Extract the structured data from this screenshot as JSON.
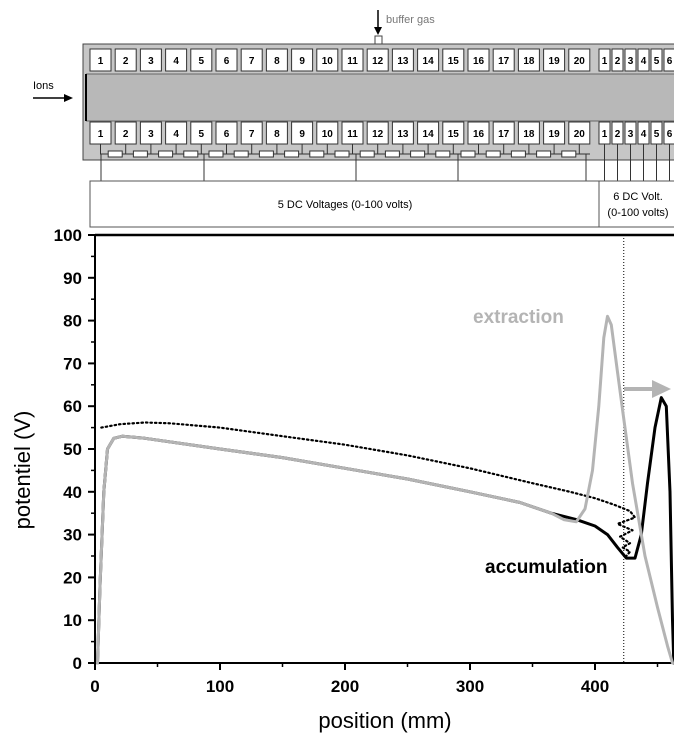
{
  "schematic": {
    "ions_label": "Ions",
    "buffer_gas_label": "buffer gas",
    "main_segments": [
      "1",
      "2",
      "3",
      "4",
      "5",
      "6",
      "7",
      "8",
      "9",
      "10",
      "11",
      "12",
      "13",
      "14",
      "15",
      "16",
      "17",
      "18",
      "19",
      "20"
    ],
    "extraction_segments": [
      "1",
      "2",
      "3",
      "4",
      "5",
      "6"
    ],
    "dc_main_label": "5 DC Voltages (0-100 volts)",
    "dc_extraction_label_line1": "6 DC Volt.",
    "dc_extraction_label_line2": "(0-100 volts)"
  },
  "chart_data": {
    "type": "line",
    "xlabel": "position (mm)",
    "ylabel": "potentiel (V)",
    "xlim": [
      0,
      460
    ],
    "ylim": [
      0,
      100
    ],
    "xticks": [
      0,
      100,
      200,
      300,
      400
    ],
    "yticks": [
      0,
      10,
      20,
      30,
      40,
      50,
      60,
      70,
      80,
      90,
      100
    ],
    "vertical_reference_x": 423,
    "annotations": [
      {
        "text": "extraction",
        "color": "#b4b4b4"
      },
      {
        "text": "accumulation",
        "color": "#000000"
      }
    ],
    "series": [
      {
        "style": "dotted",
        "color": "#000000",
        "points": [
          [
            5,
            55
          ],
          [
            20,
            55.8
          ],
          [
            40,
            56.2
          ],
          [
            60,
            56
          ],
          [
            100,
            55
          ],
          [
            150,
            53
          ],
          [
            200,
            51
          ],
          [
            250,
            48.5
          ],
          [
            300,
            45.5
          ],
          [
            350,
            42
          ],
          [
            380,
            40
          ],
          [
            400,
            38.5
          ],
          [
            415,
            37
          ],
          [
            428,
            35.5
          ],
          [
            432,
            34
          ],
          [
            418,
            32.5
          ],
          [
            430,
            31
          ],
          [
            420,
            29.5
          ],
          [
            428,
            28
          ],
          [
            422,
            27
          ],
          [
            428,
            26
          ],
          [
            425,
            25
          ]
        ]
      },
      {
        "style": "solid",
        "color": "#000000",
        "points": [
          [
            2,
            0
          ],
          [
            4,
            18
          ],
          [
            7,
            40
          ],
          [
            10,
            50
          ],
          [
            15,
            52.5
          ],
          [
            22,
            53
          ],
          [
            40,
            52.5
          ],
          [
            100,
            50
          ],
          [
            150,
            48
          ],
          [
            200,
            45.5
          ],
          [
            250,
            43
          ],
          [
            300,
            40
          ],
          [
            340,
            37.5
          ],
          [
            365,
            35
          ],
          [
            385,
            33.5
          ],
          [
            400,
            32
          ],
          [
            410,
            30
          ],
          [
            418,
            27
          ],
          [
            425,
            24.5
          ],
          [
            432,
            24.5
          ],
          [
            437,
            30
          ],
          [
            442,
            42
          ],
          [
            448,
            55
          ],
          [
            453,
            62
          ],
          [
            457,
            60
          ],
          [
            460,
            40
          ],
          [
            462,
            10
          ],
          [
            463,
            0
          ]
        ]
      },
      {
        "style": "solid",
        "color": "#b4b4b4",
        "points": [
          [
            2,
            0
          ],
          [
            4,
            18
          ],
          [
            7,
            40
          ],
          [
            10,
            50
          ],
          [
            15,
            52.5
          ],
          [
            22,
            53
          ],
          [
            40,
            52.5
          ],
          [
            100,
            50
          ],
          [
            150,
            48
          ],
          [
            200,
            45.5
          ],
          [
            250,
            43
          ],
          [
            300,
            40
          ],
          [
            340,
            37.5
          ],
          [
            365,
            35
          ],
          [
            375,
            33.5
          ],
          [
            385,
            33
          ],
          [
            392,
            36
          ],
          [
            398,
            45
          ],
          [
            403,
            60
          ],
          [
            407,
            76
          ],
          [
            410,
            81
          ],
          [
            413,
            79
          ],
          [
            418,
            68
          ],
          [
            423,
            57
          ],
          [
            430,
            42
          ],
          [
            440,
            25
          ],
          [
            450,
            13
          ],
          [
            458,
            4
          ],
          [
            462,
            0
          ]
        ]
      }
    ]
  }
}
